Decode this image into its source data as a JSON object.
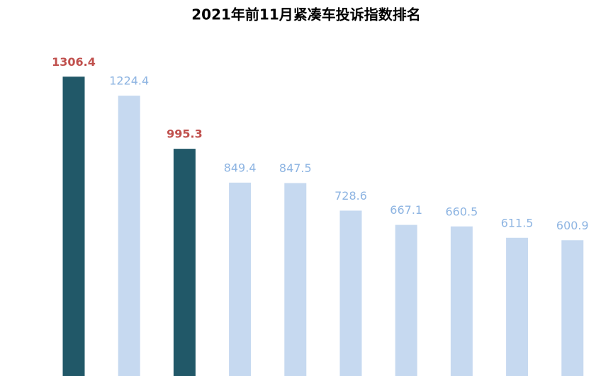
{
  "chart_data": {
    "type": "bar",
    "title": "2021年前11月紧凑车投诉指数排名",
    "values": [
      1306.4,
      1224.4,
      995.3,
      849.4,
      847.5,
      728.6,
      667.1,
      660.5,
      611.5,
      600.9
    ],
    "colors": [
      "#215868",
      "#c6d9f0",
      "#215868",
      "#c6d9f0",
      "#c6d9f0",
      "#c6d9f0",
      "#c6d9f0",
      "#c6d9f0",
      "#c6d9f0",
      "#c6d9f0"
    ],
    "label_colors": [
      "#c0504d",
      "#8db4e2",
      "#c0504d",
      "#8db4e2",
      "#8db4e2",
      "#8db4e2",
      "#8db4e2",
      "#8db4e2",
      "#8db4e2",
      "#8db4e2"
    ]
  }
}
